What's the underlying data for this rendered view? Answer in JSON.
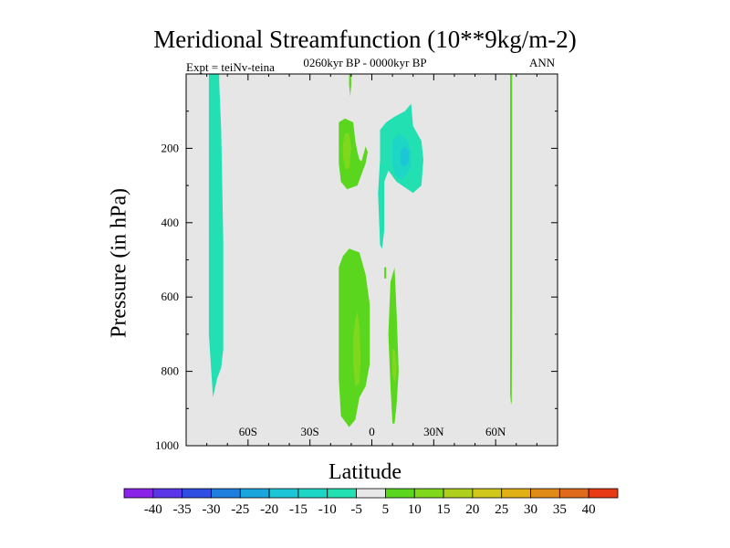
{
  "chart_data": {
    "type": "heatmap",
    "title": "Meridional Streamfunction (10**9kg/m-2)",
    "subtitle": "0260kyr BP - 0000kyr BP",
    "left_label": "Expt = teiNv-teina",
    "right_label": "ANN",
    "xlabel": "Latitude",
    "ylabel": "Pressure (in hPa)",
    "xlim": [
      -90,
      90
    ],
    "ylim": [
      1000,
      0
    ],
    "x_ticks": [
      {
        "value": -60,
        "label": "60S"
      },
      {
        "value": -30,
        "label": "30S"
      },
      {
        "value": 0,
        "label": "0"
      },
      {
        "value": 30,
        "label": "30N"
      },
      {
        "value": 60,
        "label": "60N"
      }
    ],
    "y_ticks": [
      {
        "value": 200,
        "label": "200"
      },
      {
        "value": 400,
        "label": "400"
      },
      {
        "value": 600,
        "label": "600"
      },
      {
        "value": 800,
        "label": "800"
      },
      {
        "value": 1000,
        "label": "1000"
      }
    ],
    "missing_color": "#e6e6e6",
    "colorbar": {
      "labels": [
        "-40",
        "-35",
        "-30",
        "-25",
        "-20",
        "-15",
        "-10",
        "-5",
        "5",
        "10",
        "15",
        "20",
        "25",
        "30",
        "35",
        "40"
      ],
      "colors": [
        "#8a22e8",
        "#5a36e8",
        "#2f4fe3",
        "#1f7fdf",
        "#1aa5dd",
        "#1dc6d6",
        "#1ed6c6",
        "#22e0b2",
        "#e8e8e8",
        "#5ad61e",
        "#80d81c",
        "#aed01c",
        "#d0c81a",
        "#e0b014",
        "#e08a18",
        "#e06a1c",
        "#e83a14"
      ]
    },
    "regions": [
      {
        "name": "southern-high-lat-column",
        "value": -5,
        "color": "#22e0b2",
        "points": [
          [
            -79,
            0
          ],
          [
            -74,
            0
          ],
          [
            -74,
            20
          ],
          [
            -73,
            150
          ],
          [
            -72,
            450
          ],
          [
            -72,
            740
          ],
          [
            -73,
            790
          ],
          [
            -75,
            820
          ],
          [
            -77,
            870
          ],
          [
            -79,
            700
          ],
          [
            -79,
            300
          ]
        ]
      },
      {
        "name": "upper-thin-line",
        "value": 5,
        "color": "#5ad61e",
        "points": [
          [
            -11,
            0
          ],
          [
            -10,
            0
          ],
          [
            -10,
            30
          ],
          [
            -10.5,
            60
          ],
          [
            -11,
            30
          ]
        ]
      },
      {
        "name": "upper-south-cell",
        "value": 5,
        "color": "#5ad61e",
        "points": [
          [
            -16,
            130
          ],
          [
            -13,
            120
          ],
          [
            -9,
            130
          ],
          [
            -8,
            180
          ],
          [
            -7,
            210
          ],
          [
            -6,
            230
          ],
          [
            -5,
            235
          ],
          [
            -3,
            195
          ],
          [
            -2,
            210
          ],
          [
            -3,
            240
          ],
          [
            -5,
            270
          ],
          [
            -7,
            300
          ],
          [
            -12,
            310
          ],
          [
            -15,
            290
          ],
          [
            -16,
            240
          ],
          [
            -16,
            180
          ]
        ]
      },
      {
        "name": "upper-south-core",
        "value": 10,
        "color": "#80d81c",
        "points": [
          [
            -13,
            160
          ],
          [
            -11,
            160
          ],
          [
            -10,
            195
          ],
          [
            -10.5,
            230
          ],
          [
            -11,
            255
          ],
          [
            -13,
            255
          ],
          [
            -14,
            220
          ],
          [
            -14,
            190
          ]
        ]
      },
      {
        "name": "upper-north-cell",
        "value": -5,
        "color": "#22e0b2",
        "points": [
          [
            4,
            150
          ],
          [
            7,
            130
          ],
          [
            11,
            115
          ],
          [
            16,
            100
          ],
          [
            19,
            80
          ],
          [
            20,
            140
          ],
          [
            24,
            180
          ],
          [
            25,
            230
          ],
          [
            24,
            300
          ],
          [
            20,
            320
          ],
          [
            12,
            290
          ],
          [
            8,
            260
          ],
          [
            6,
            290
          ],
          [
            6,
            420
          ],
          [
            5,
            470
          ],
          [
            4,
            460
          ],
          [
            3,
            320
          ],
          [
            4,
            230
          ]
        ]
      },
      {
        "name": "upper-north-core",
        "value": -10,
        "color": "#1ed6c6",
        "points": [
          [
            10,
            180
          ],
          [
            13,
            160
          ],
          [
            17,
            175
          ],
          [
            19,
            210
          ],
          [
            19,
            250
          ],
          [
            17,
            270
          ],
          [
            14,
            285
          ],
          [
            11,
            270
          ],
          [
            10,
            240
          ]
        ]
      },
      {
        "name": "upper-north-core-inner",
        "value": -15,
        "color": "#1dc6d6",
        "points": [
          [
            14,
            205
          ],
          [
            16,
            195
          ],
          [
            18,
            208
          ],
          [
            18,
            235
          ],
          [
            16,
            250
          ],
          [
            14,
            245
          ]
        ]
      },
      {
        "name": "tiny-mark",
        "value": 5,
        "color": "#5ad61e",
        "points": [
          [
            6,
            520
          ],
          [
            7,
            520
          ],
          [
            7,
            550
          ],
          [
            6,
            550
          ]
        ]
      },
      {
        "name": "lower-south-cell",
        "value": 5,
        "color": "#5ad61e",
        "points": [
          [
            -16,
            520
          ],
          [
            -14,
            490
          ],
          [
            -11,
            470
          ],
          [
            -6,
            480
          ],
          [
            -3,
            540
          ],
          [
            -1,
            620
          ],
          [
            -1,
            780
          ],
          [
            -3,
            840
          ],
          [
            -6,
            870
          ],
          [
            -8,
            930
          ],
          [
            -11,
            950
          ],
          [
            -15,
            920
          ],
          [
            -16,
            820
          ],
          [
            -16,
            660
          ]
        ]
      },
      {
        "name": "lower-south-core",
        "value": 10,
        "color": "#80d81c",
        "points": [
          [
            -8,
            660
          ],
          [
            -7,
            640
          ],
          [
            -6,
            680
          ],
          [
            -5.5,
            760
          ],
          [
            -6,
            830
          ],
          [
            -8,
            840
          ],
          [
            -9,
            780
          ],
          [
            -9,
            710
          ]
        ]
      },
      {
        "name": "lower-north-column",
        "value": 5,
        "color": "#5ad61e",
        "points": [
          [
            9,
            560
          ],
          [
            11,
            520
          ],
          [
            12,
            640
          ],
          [
            13,
            800
          ],
          [
            12,
            890
          ],
          [
            11,
            940
          ],
          [
            10,
            940
          ],
          [
            9,
            840
          ],
          [
            8,
            700
          ]
        ]
      },
      {
        "name": "lower-north-core",
        "value": 10,
        "color": "#80d81c",
        "points": [
          [
            10,
            740
          ],
          [
            11,
            740
          ],
          [
            12,
            780
          ],
          [
            12,
            810
          ],
          [
            11,
            830
          ],
          [
            10,
            810
          ]
        ]
      },
      {
        "name": "northern-high-lat-line",
        "value": 5,
        "color": "#5ad61e",
        "points": [
          [
            67,
            0
          ],
          [
            68,
            0
          ],
          [
            68,
            600
          ],
          [
            67.8,
            880
          ],
          [
            67.5,
            890
          ],
          [
            67,
            860
          ],
          [
            67,
            400
          ]
        ]
      }
    ]
  }
}
